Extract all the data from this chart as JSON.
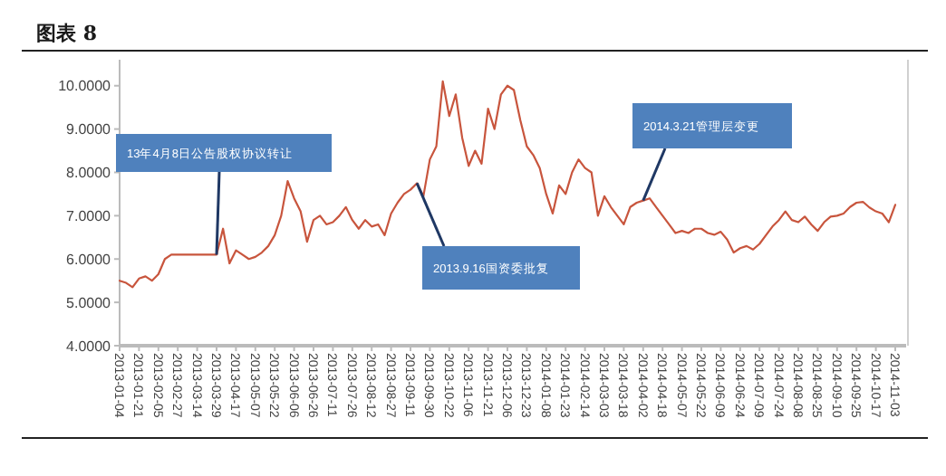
{
  "chart_data": {
    "type": "line",
    "title": "图表 8",
    "categories": [
      "2013-01-04",
      null,
      null,
      "2013-01-21",
      null,
      null,
      "2013-02-05",
      null,
      null,
      "2013-02-27",
      null,
      null,
      "2013-03-14",
      null,
      null,
      "2013-03-29",
      null,
      null,
      "2013-04-17",
      null,
      null,
      "2013-05-07",
      null,
      null,
      "2013-05-22",
      null,
      null,
      "2013-06-06",
      null,
      null,
      "2013-06-26",
      null,
      null,
      "2013-07-11",
      null,
      null,
      "2013-07-26",
      null,
      null,
      "2013-08-12",
      null,
      null,
      "2013-08-27",
      null,
      null,
      "2013-09-11",
      null,
      null,
      "2013-09-30",
      null,
      null,
      "2013-10-22",
      null,
      null,
      "2013-11-06",
      null,
      null,
      "2013-11-21",
      null,
      null,
      "2013-12-06",
      null,
      null,
      "2013-12-23",
      null,
      null,
      "2014-01-08",
      null,
      null,
      "2014-01-23",
      null,
      null,
      "2014-02-14",
      null,
      null,
      "2014-03-03",
      null,
      null,
      "2014-03-18",
      null,
      null,
      "2014-04-02",
      null,
      null,
      "2014-04-18",
      null,
      null,
      "2014-05-07",
      null,
      null,
      "2014-05-22",
      null,
      null,
      "2014-06-09",
      null,
      null,
      "2014-06-24",
      null,
      null,
      "2014-07-09",
      null,
      null,
      "2014-07-24",
      null,
      null,
      "2014-08-08",
      null,
      null,
      "2014-08-25",
      null,
      null,
      "2014-09-10",
      null,
      null,
      "2014-09-25",
      null,
      null,
      "2014-10-17",
      null,
      null,
      "2014-11-03"
    ],
    "series": [
      {
        "color": "#c8553d",
        "values": [
          5.5,
          5.45,
          5.35,
          5.55,
          5.6,
          5.5,
          5.65,
          6.0,
          6.1,
          6.1,
          6.1,
          6.1,
          6.1,
          6.1,
          6.1,
          6.1,
          6.7,
          5.9,
          6.2,
          6.1,
          6.0,
          6.05,
          6.15,
          6.3,
          6.55,
          7.0,
          7.8,
          7.4,
          7.1,
          6.4,
          6.9,
          7.0,
          6.8,
          6.85,
          7.0,
          7.2,
          6.9,
          6.7,
          6.9,
          6.75,
          6.8,
          6.55,
          7.05,
          7.3,
          7.5,
          7.6,
          7.75,
          7.45,
          8.3,
          8.6,
          10.1,
          9.3,
          9.8,
          8.8,
          8.15,
          8.5,
          8.2,
          9.47,
          9.0,
          9.8,
          10.0,
          9.9,
          9.2,
          8.6,
          8.4,
          8.1,
          7.5,
          7.05,
          7.7,
          7.5,
          8.0,
          8.3,
          8.1,
          8.0,
          7.0,
          7.45,
          7.2,
          7.0,
          6.8,
          7.2,
          7.3,
          7.35,
          7.4,
          7.2,
          7.0,
          6.8,
          6.6,
          6.65,
          6.6,
          6.7,
          6.7,
          6.6,
          6.56,
          6.63,
          6.45,
          6.15,
          6.25,
          6.3,
          6.22,
          6.35,
          6.55,
          6.75,
          6.9,
          7.1,
          6.9,
          6.85,
          6.98,
          6.8,
          6.65,
          6.85,
          6.98,
          7.0,
          7.05,
          7.2,
          7.3,
          7.32,
          7.19,
          7.1,
          7.05,
          6.85,
          7.25
        ]
      }
    ],
    "ylim": [
      4,
      10.6
    ],
    "yticks": [
      {
        "value": 4,
        "label": "4.0000"
      },
      {
        "value": 5,
        "label": "5.0000"
      },
      {
        "value": 6,
        "label": "6.0000"
      },
      {
        "value": 7,
        "label": "7.0000"
      },
      {
        "value": 8,
        "label": "8.0000"
      },
      {
        "value": 9,
        "label": "9.0000"
      },
      {
        "value": 10,
        "label": "10.0000"
      }
    ],
    "annotations": [
      {
        "text": "13年4月8日公告股权协议转让",
        "x": "2013-03-29",
        "y": 6.1
      },
      "2013.9.16国资委批复",
      {
        "text": "2014.3.21管理层变更",
        "x": "2014-04-02",
        "y": 7.35
      }
    ],
    "grid": false
  }
}
